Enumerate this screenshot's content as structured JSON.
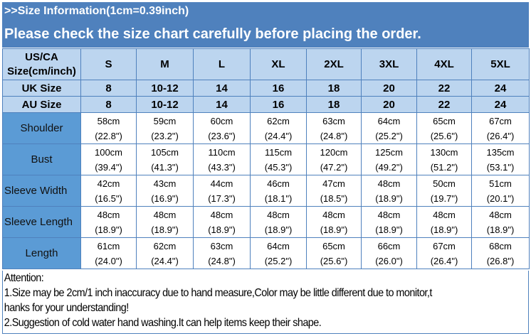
{
  "header": {
    "title": ">>Size Information(1cm=0.39inch)",
    "subtitle": "Please check the size chart carefully before placing the order."
  },
  "table": {
    "corner_label": [
      "US/CA",
      "Size(cm/inch)"
    ],
    "sizes": [
      "S",
      "M",
      "L",
      "XL",
      "2XL",
      "3XL",
      "4XL",
      "5XL"
    ],
    "uk": {
      "label": "UK Size",
      "values": [
        "8",
        "10-12",
        "14",
        "16",
        "18",
        "20",
        "22",
        "24"
      ]
    },
    "au": {
      "label": "AU Size",
      "values": [
        "8",
        "10-12",
        "14",
        "16",
        "18",
        "20",
        "22",
        "24"
      ]
    },
    "rows": [
      {
        "label": "Shoulder",
        "cm": [
          "58cm",
          "59cm",
          "60cm",
          "62cm",
          "63cm",
          "64cm",
          "65cm",
          "67cm"
        ],
        "inch": [
          "(22.8\")",
          "(23.2\")",
          "(23.6\")",
          "(24.4\")",
          "(24.8\")",
          "(25.2\")",
          "(25.6\")",
          "(26.4\")"
        ]
      },
      {
        "label": "Bust",
        "cm": [
          "100cm",
          "105cm",
          "110cm",
          "115cm",
          "120cm",
          "125cm",
          "130cm",
          "135cm"
        ],
        "inch": [
          "(39.4\")",
          "(41.3\")",
          "(43.3\")",
          "(45.3\")",
          "(47.2\")",
          "(49.2\")",
          "(51.2\")",
          "(53.1\")"
        ]
      },
      {
        "label": "Sleeve Width",
        "cm": [
          "42cm",
          "43cm",
          "44cm",
          "46cm",
          "47cm",
          "48cm",
          "50cm",
          "51cm"
        ],
        "inch": [
          "(16.5\")",
          "(16.9\")",
          "(17.3\")",
          "(18.1\")",
          "(18.5\")",
          "(18.9\")",
          "(19.7\")",
          "(20.1\")"
        ]
      },
      {
        "label": "Sleeve Length",
        "cm": [
          "48cm",
          "48cm",
          "48cm",
          "48cm",
          "48cm",
          "48cm",
          "48cm",
          "48cm"
        ],
        "inch": [
          "(18.9\")",
          "(18.9\")",
          "(18.9\")",
          "(18.9\")",
          "(18.9\")",
          "(18.9\")",
          "(18.9\")",
          "(18.9\")"
        ]
      },
      {
        "label": "Length",
        "cm": [
          "61cm",
          "62cm",
          "63cm",
          "64cm",
          "65cm",
          "66cm",
          "67cm",
          "68cm"
        ],
        "inch": [
          "(24.0\")",
          "(24.4\")",
          "(24.8\")",
          "(25.2\")",
          "(25.6\")",
          "(26.0\")",
          "(26.4\")",
          "(26.8\")"
        ]
      }
    ]
  },
  "note": {
    "lines": [
      "Attention:",
      "1.Size may be 2cm/1  inch inaccuracy due to hand measure,Color may be little different due to monitor,t",
      "hanks for your understanding!",
      "2.Suggestion of cold water hand washing.It can help items keep their shape."
    ]
  },
  "colors": {
    "header_bg": "#4f81bd",
    "size_header_bg": "#bcd5ef",
    "row_label_bg": "#5b9bd5",
    "border": "#4f81bd"
  }
}
